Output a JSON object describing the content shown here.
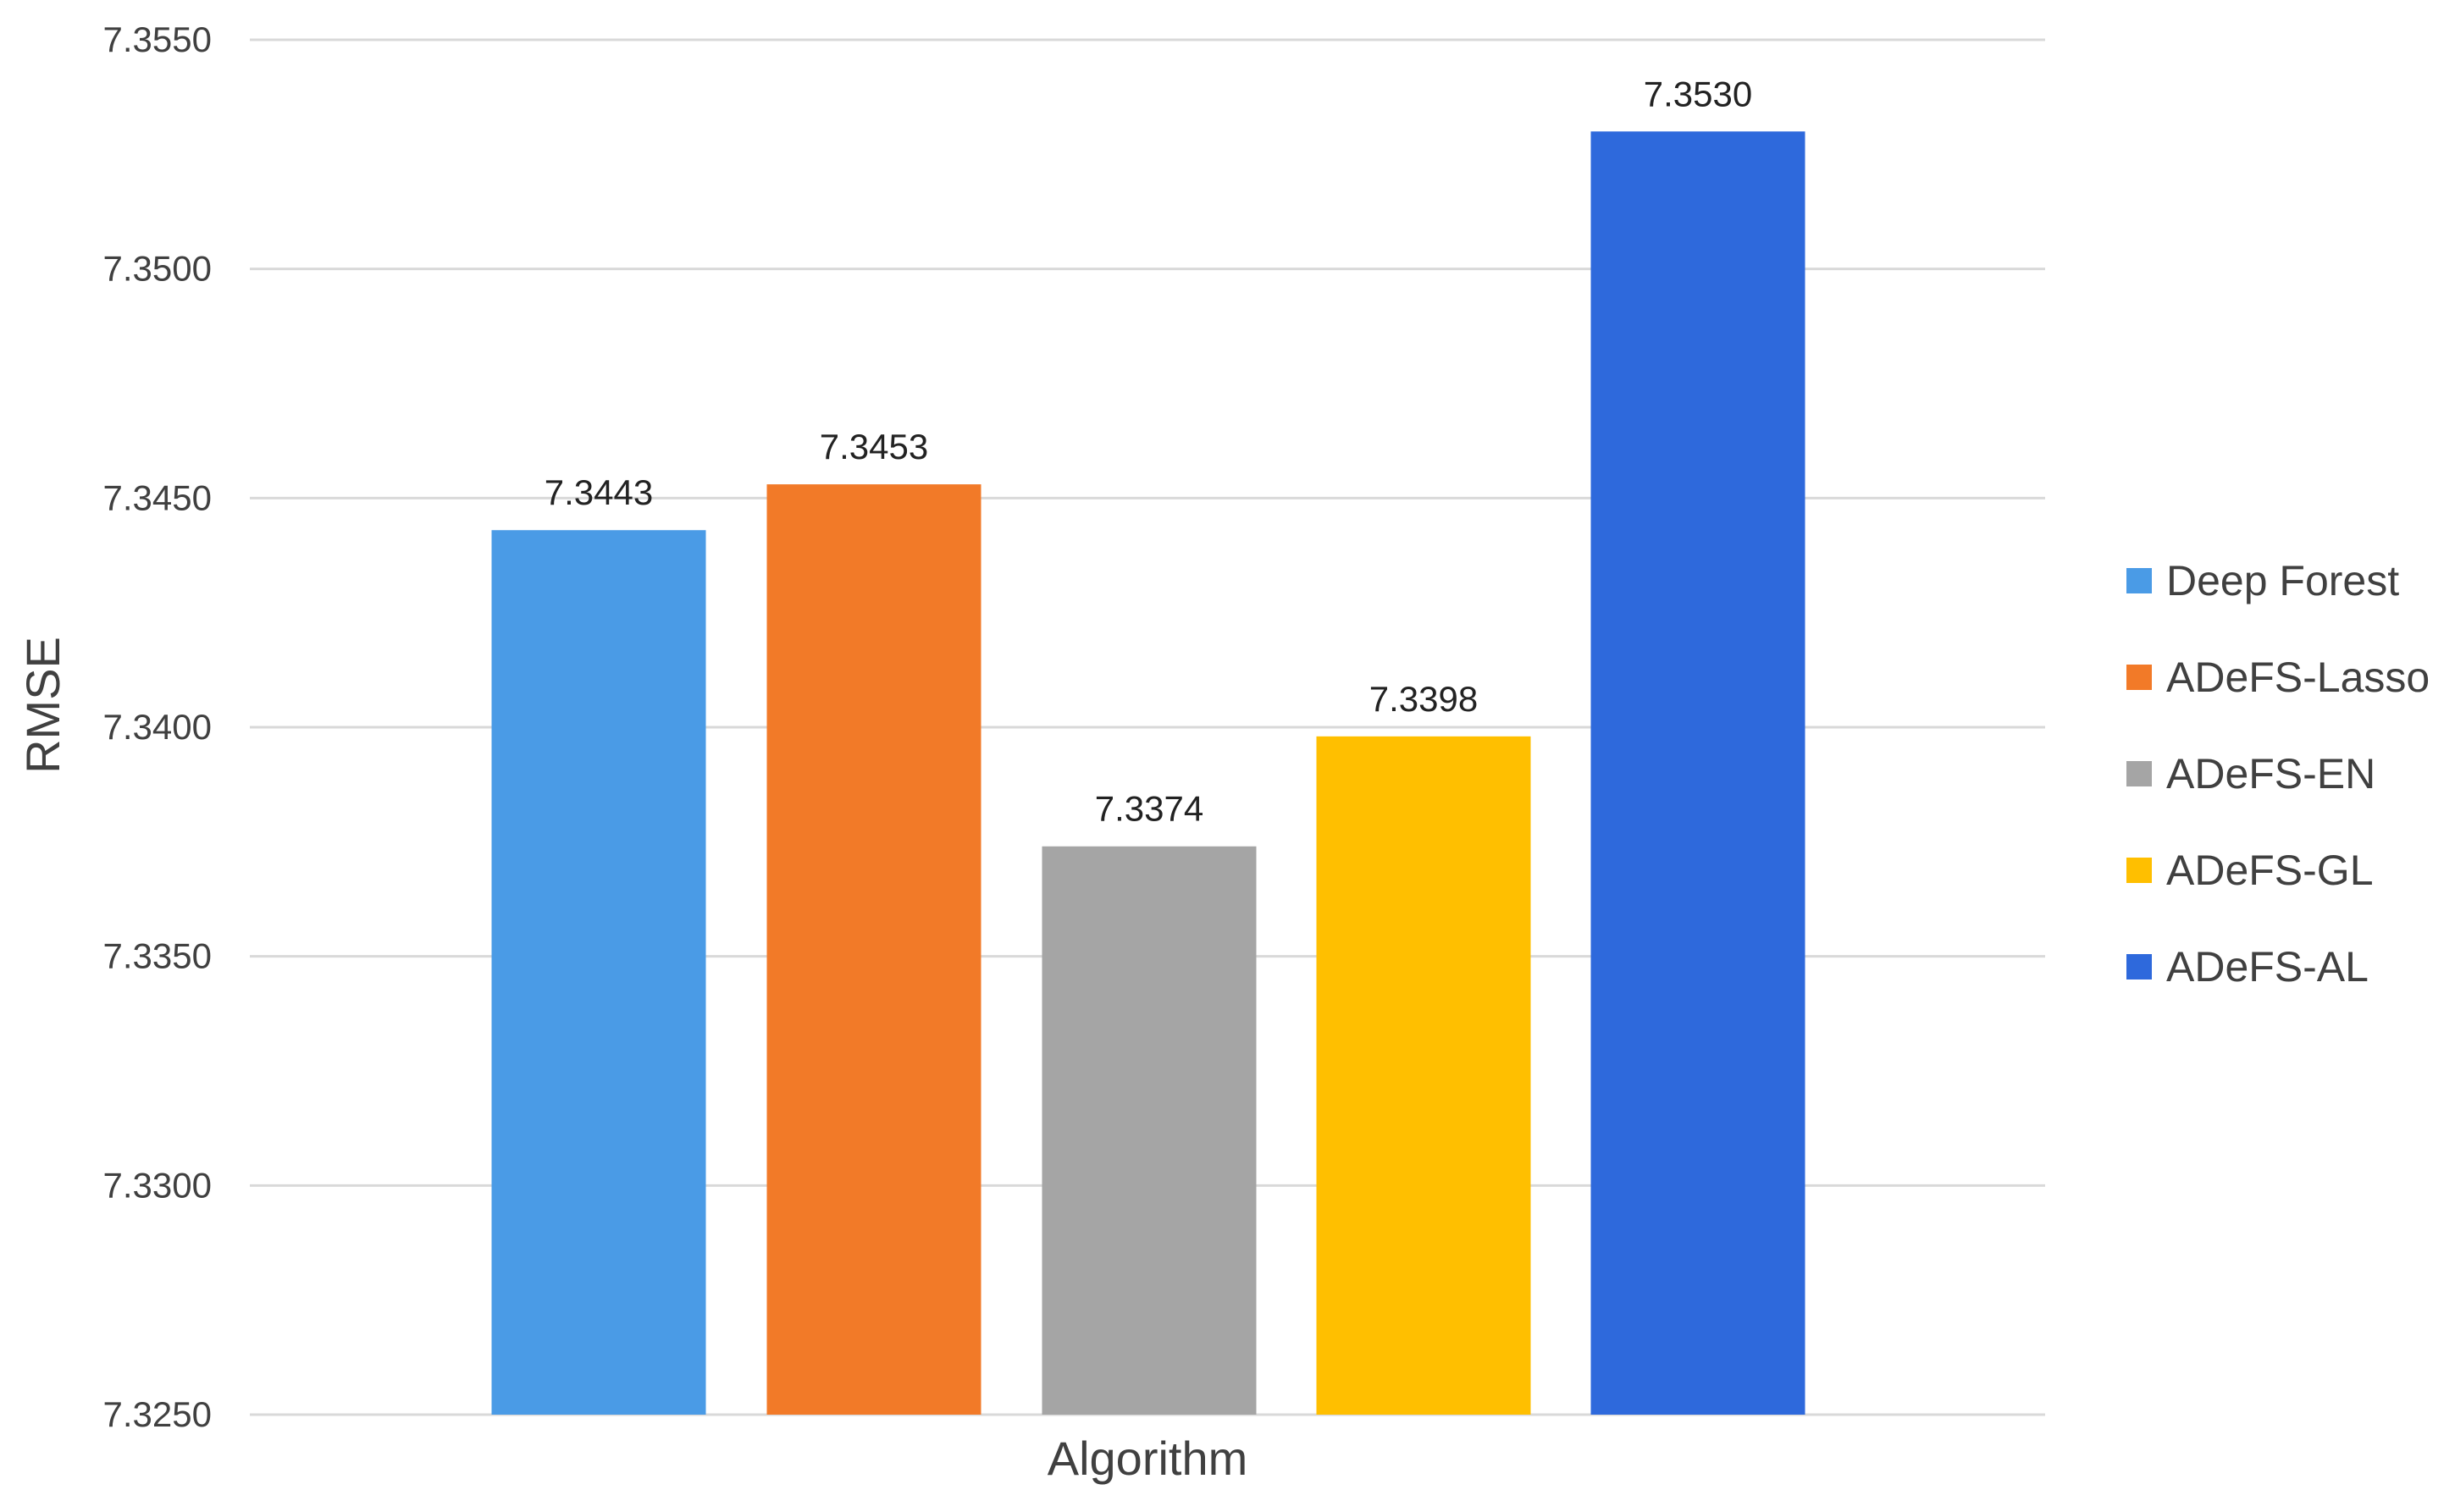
{
  "chart_data": {
    "type": "bar",
    "title": "",
    "xlabel": "Algorithm",
    "ylabel": "RMSE",
    "ylim": [
      7.325,
      7.355
    ],
    "yticks": [
      "7.3250",
      "7.3300",
      "7.3350",
      "7.3400",
      "7.3450",
      "7.3500",
      "7.3550"
    ],
    "grid": true,
    "legend_position": "right",
    "series": [
      {
        "name": "Deep Forest",
        "value": 7.3443,
        "label": "7.3443",
        "color": "#4a9be6"
      },
      {
        "name": "ADeFS-Lasso",
        "value": 7.3453,
        "label": "7.3453",
        "color": "#f27a28"
      },
      {
        "name": "ADeFS-EN",
        "value": 7.3374,
        "label": "7.3374",
        "color": "#a5a5a5"
      },
      {
        "name": "ADeFS-GL",
        "value": 7.3398,
        "label": "7.3398",
        "color": "#ffbf00"
      },
      {
        "name": "ADeFS-AL",
        "value": 7.353,
        "label": "7.3530",
        "color": "#2e69dc"
      }
    ]
  }
}
